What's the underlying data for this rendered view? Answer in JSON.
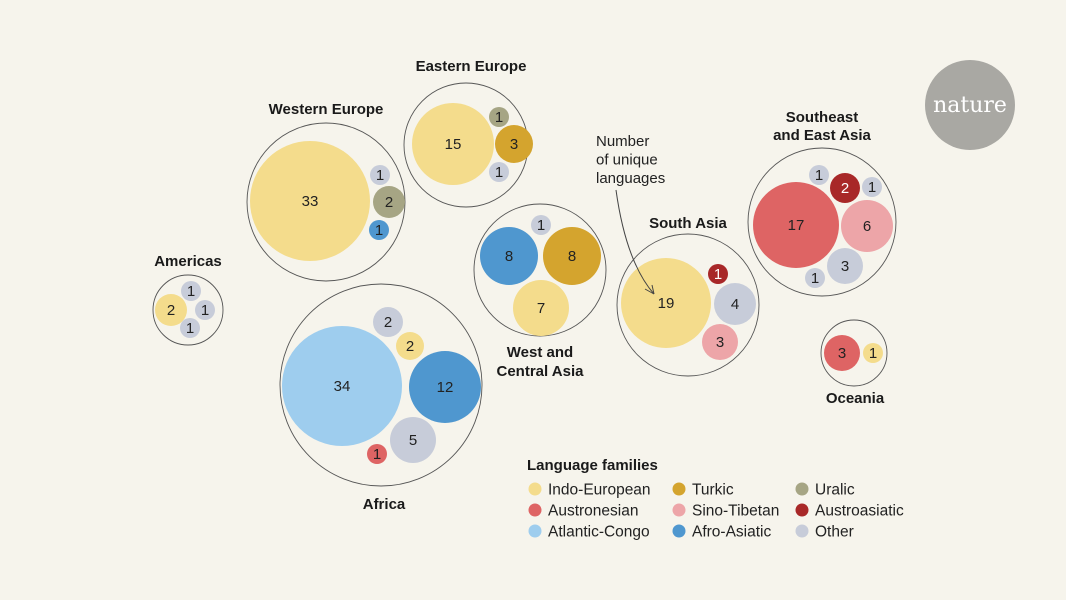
{
  "chart_data": {
    "type": "bubble-cluster",
    "title": "",
    "logo": "nature",
    "annotation": [
      "Number",
      "of unique",
      "languages"
    ],
    "legend": {
      "title": "Language families",
      "items": [
        {
          "key": "indo_european",
          "label": "Indo-European"
        },
        {
          "key": "turkic",
          "label": "Turkic"
        },
        {
          "key": "uralic",
          "label": "Uralic"
        },
        {
          "key": "austronesian",
          "label": "Austronesian"
        },
        {
          "key": "sino_tibetan",
          "label": "Sino-Tibetan"
        },
        {
          "key": "austroasiatic",
          "label": "Austroasiatic"
        },
        {
          "key": "atlantic_congo",
          "label": "Atlantic-Congo"
        },
        {
          "key": "afro_asiatic",
          "label": "Afro-Asiatic"
        },
        {
          "key": "other",
          "label": "Other"
        }
      ]
    },
    "colors": {
      "indo_european": "#f4dc8c",
      "turkic": "#d4a42e",
      "uralic": "#a6a584",
      "austronesian": "#de6464",
      "sino_tibetan": "#eda5a8",
      "austroasiatic": "#a82828",
      "atlantic_congo": "#9ecdee",
      "afro_asiatic": "#4f97cf",
      "other": "#c7ccd9",
      "outline": "#555555",
      "logo_bg": "#a9a8a3"
    },
    "regions": [
      {
        "name": [
          "Western Europe"
        ],
        "languages": [
          {
            "family": "indo_european",
            "count": 33
          },
          {
            "family": "other",
            "count": 1
          },
          {
            "family": "uralic",
            "count": 2
          },
          {
            "family": "afro_asiatic",
            "count": 1
          }
        ]
      },
      {
        "name": [
          "Eastern Europe"
        ],
        "languages": [
          {
            "family": "indo_european",
            "count": 15
          },
          {
            "family": "uralic",
            "count": 1
          },
          {
            "family": "turkic",
            "count": 3
          },
          {
            "family": "other",
            "count": 1
          }
        ]
      },
      {
        "name": [
          "Americas"
        ],
        "languages": [
          {
            "family": "indo_european",
            "count": 2
          },
          {
            "family": "other",
            "count": 1
          },
          {
            "family": "other",
            "count": 1
          },
          {
            "family": "other",
            "count": 1
          }
        ]
      },
      {
        "name": [
          "Africa"
        ],
        "languages": [
          {
            "family": "atlantic_congo",
            "count": 34
          },
          {
            "family": "other",
            "count": 2
          },
          {
            "family": "indo_european",
            "count": 2
          },
          {
            "family": "afro_asiatic",
            "count": 12
          },
          {
            "family": "other",
            "count": 5
          },
          {
            "family": "austronesian",
            "count": 1
          }
        ]
      },
      {
        "name": [
          "West and",
          "Central Asia"
        ],
        "languages": [
          {
            "family": "afro_asiatic",
            "count": 8
          },
          {
            "family": "turkic",
            "count": 8
          },
          {
            "family": "other",
            "count": 1
          },
          {
            "family": "indo_european",
            "count": 7
          }
        ]
      },
      {
        "name": [
          "South Asia"
        ],
        "languages": [
          {
            "family": "indo_european",
            "count": 19
          },
          {
            "family": "austroasiatic",
            "count": 1
          },
          {
            "family": "other",
            "count": 4
          },
          {
            "family": "sino_tibetan",
            "count": 3
          }
        ]
      },
      {
        "name": [
          "Southeast",
          "and East Asia"
        ],
        "languages": [
          {
            "family": "austronesian",
            "count": 17
          },
          {
            "family": "other",
            "count": 1
          },
          {
            "family": "austroasiatic",
            "count": 2
          },
          {
            "family": "other",
            "count": 1
          },
          {
            "family": "sino_tibetan",
            "count": 6
          },
          {
            "family": "other",
            "count": 3
          },
          {
            "family": "other",
            "count": 1
          }
        ]
      },
      {
        "name": [
          "Oceania"
        ],
        "languages": [
          {
            "family": "austronesian",
            "count": 3
          },
          {
            "family": "indo_european",
            "count": 1
          }
        ]
      }
    ]
  }
}
